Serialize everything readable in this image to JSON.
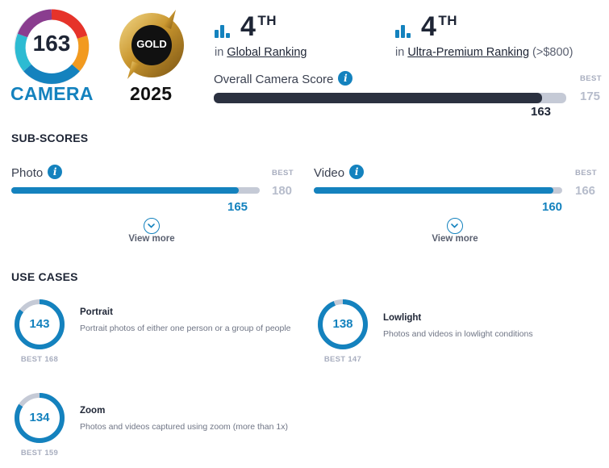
{
  "score_badge": {
    "value": "163",
    "label": "CAMERA"
  },
  "award": {
    "label": "GOLD",
    "year": "2025"
  },
  "rankings": [
    {
      "rank": "4",
      "suffix": "TH",
      "prefix": "in",
      "name": "Global Ranking",
      "note": ""
    },
    {
      "rank": "4",
      "suffix": "TH",
      "prefix": "in",
      "name": "Ultra-Premium Ranking",
      "note": "(>$800)"
    }
  ],
  "overall": {
    "label": "Overall Camera Score",
    "score": "163",
    "best_label": "BEST",
    "best": "175",
    "score_num": 163,
    "best_num": 175
  },
  "subscores": {
    "title": "SUB-SCORES",
    "items": [
      {
        "label": "Photo",
        "score": "165",
        "best_label": "BEST",
        "best": "180",
        "score_num": 165,
        "best_num": 180,
        "view_more": "View more"
      },
      {
        "label": "Video",
        "score": "160",
        "best_label": "BEST",
        "best": "166",
        "score_num": 160,
        "best_num": 166,
        "view_more": "View more"
      }
    ]
  },
  "use_cases": {
    "title": "USE CASES",
    "items": [
      {
        "name": "Portrait",
        "description": "Portrait photos of either one person or a group of people",
        "score": "143",
        "best": "BEST 168",
        "score_num": 143,
        "best_num": 168
      },
      {
        "name": "Lowlight",
        "description": "Photos and videos in lowlight conditions",
        "score": "138",
        "best": "BEST 147",
        "score_num": 138,
        "best_num": 147
      },
      {
        "name": "Zoom",
        "description": "Photos and videos captured using zoom (more than 1x)",
        "score": "134",
        "best": "BEST 159",
        "score_num": 134,
        "best_num": 159
      }
    ]
  },
  "colors": {
    "accent": "#1482be",
    "dark_bar": "#2b3140",
    "track": "#c5cad6",
    "gold": "#c9a13b"
  }
}
